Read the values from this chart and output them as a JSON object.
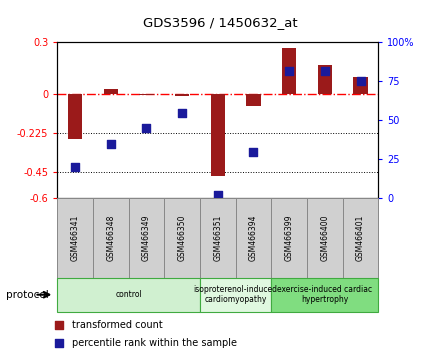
{
  "title": "GDS3596 / 1450632_at",
  "samples": [
    "GSM466341",
    "GSM466348",
    "GSM466349",
    "GSM466350",
    "GSM466351",
    "GSM466394",
    "GSM466399",
    "GSM466400",
    "GSM466401"
  ],
  "transformed_count": [
    -0.255,
    0.03,
    -0.005,
    -0.01,
    -0.47,
    -0.065,
    0.27,
    0.17,
    0.1
  ],
  "percentile_rank": [
    20,
    35,
    45,
    55,
    2,
    30,
    82,
    82,
    75
  ],
  "groups": [
    {
      "label": "control",
      "start": 0,
      "end": 4,
      "color": "#d0f0d0"
    },
    {
      "label": "isoproterenol-induced\ncardiomyopathy",
      "start": 4,
      "end": 6,
      "color": "#e0f8e0"
    },
    {
      "label": "exercise-induced cardiac\nhypertrophy",
      "start": 6,
      "end": 9,
      "color": "#80dd80"
    }
  ],
  "ylim_left": [
    -0.6,
    0.3
  ],
  "ylim_right": [
    0,
    100
  ],
  "yticks_left": [
    0.3,
    0,
    -0.225,
    -0.45,
    -0.6
  ],
  "yticks_right": [
    100,
    75,
    50,
    25,
    0
  ],
  "bar_color": "#9b1a1a",
  "dot_color": "#1a1a9b",
  "background_color": "#ffffff",
  "legend_items": [
    "transformed count",
    "percentile rank within the sample"
  ],
  "protocol_label": "protocol",
  "bar_width": 0.4,
  "dot_size": 35
}
